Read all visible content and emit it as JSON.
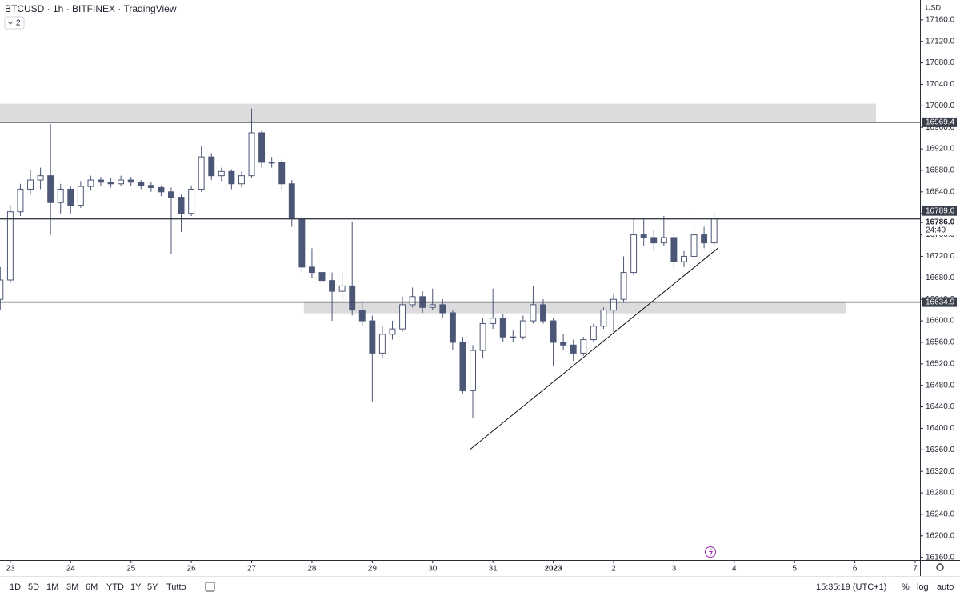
{
  "header": {
    "title": "BTCUSD · 1h · BITFINEX · TradingView",
    "indicator_count": "2",
    "currency": "USD"
  },
  "chart_data": {
    "type": "candlestick",
    "x": [
      -4,
      0,
      4,
      8,
      12,
      16,
      20,
      24,
      28,
      32,
      36,
      40,
      44,
      48,
      52,
      56,
      60,
      64,
      68,
      72,
      76,
      80,
      84,
      88,
      92,
      96,
      100,
      104,
      108,
      112,
      116,
      120,
      124,
      128,
      132,
      136,
      140,
      144,
      148,
      152,
      156,
      160,
      164,
      168,
      172,
      176,
      180,
      184,
      188,
      192,
      196,
      200,
      204,
      208,
      212,
      216,
      220,
      224,
      228,
      232,
      236,
      240,
      244,
      248,
      252,
      256,
      260,
      264,
      268,
      272,
      276,
      280
    ],
    "open": [
      16640,
      16676,
      16803,
      16845,
      16862,
      16870,
      16820,
      16845,
      16815,
      16850,
      16862,
      16858,
      16855,
      16862,
      16858,
      16852,
      16848,
      16840,
      16830,
      16800,
      16845,
      16905,
      16870,
      16878,
      16855,
      16870,
      16950,
      16895,
      16895,
      16855,
      16790,
      16700,
      16690,
      16675,
      16655,
      16665,
      16620,
      16600,
      16540,
      16575,
      16585,
      16630,
      16645,
      16625,
      16630,
      16615,
      16560,
      16470,
      16545,
      16595,
      16605,
      16570,
      16570,
      16600,
      16630,
      16600,
      16560,
      16555,
      16540,
      16565,
      16590,
      16620,
      16640,
      16690,
      16760,
      16755,
      16745,
      16755,
      16710,
      16720,
      16760,
      16745
    ],
    "high": [
      16700,
      16815,
      16855,
      16880,
      16885,
      16966,
      16855,
      16850,
      16860,
      16870,
      16868,
      16866,
      16870,
      16868,
      16862,
      16858,
      16852,
      16848,
      16835,
      16852,
      16925,
      16912,
      16885,
      16882,
      16878,
      16995,
      16955,
      16905,
      16900,
      16862,
      16795,
      16735,
      16700,
      16690,
      16690,
      16785,
      16635,
      16610,
      16590,
      16600,
      16645,
      16662,
      16655,
      16660,
      16640,
      16620,
      16570,
      16555,
      16605,
      16660,
      16612,
      16582,
      16610,
      16665,
      16640,
      16605,
      16575,
      16565,
      16570,
      16595,
      16625,
      16650,
      16720,
      16790,
      16790,
      16770,
      16795,
      16762,
      16730,
      16800,
      16775,
      16800
    ],
    "low": [
      16620,
      16670,
      16795,
      16835,
      16845,
      16760,
      16800,
      16800,
      16810,
      16842,
      16850,
      16848,
      16850,
      16850,
      16845,
      16840,
      16832,
      16724,
      16765,
      16795,
      16840,
      16862,
      16860,
      16845,
      16848,
      16865,
      16885,
      16885,
      16845,
      16775,
      16690,
      16680,
      16650,
      16600,
      16640,
      16610,
      16590,
      16450,
      16530,
      16565,
      16580,
      16625,
      16615,
      16620,
      16605,
      16545,
      16465,
      16420,
      16530,
      16585,
      16560,
      16560,
      16565,
      16595,
      16595,
      16515,
      16545,
      16525,
      16535,
      16560,
      16585,
      16580,
      16635,
      16685,
      16740,
      16730,
      16740,
      16695,
      16700,
      16715,
      16735,
      16740
    ],
    "close": [
      16676,
      16803,
      16845,
      16862,
      16870,
      16820,
      16845,
      16815,
      16850,
      16862,
      16858,
      16855,
      16862,
      16858,
      16852,
      16848,
      16840,
      16830,
      16800,
      16845,
      16905,
      16870,
      16878,
      16855,
      16870,
      16950,
      16895,
      16895,
      16855,
      16790,
      16700,
      16690,
      16675,
      16655,
      16665,
      16620,
      16600,
      16540,
      16575,
      16585,
      16630,
      16645,
      16625,
      16630,
      16615,
      16560,
      16470,
      16545,
      16595,
      16605,
      16570,
      16570,
      16600,
      16630,
      16600,
      16560,
      16555,
      16540,
      16565,
      16590,
      16620,
      16640,
      16690,
      16760,
      16755,
      16745,
      16755,
      16710,
      16720,
      16760,
      16745,
      16790
    ],
    "up_color": "#ffffff",
    "down_color": "#4c5676",
    "wick_color": "#4c5676",
    "xlim": [
      -4.1,
      361.9
    ],
    "xticks": [
      {
        "value": 0,
        "label": "23"
      },
      {
        "value": 24,
        "label": "24"
      },
      {
        "value": 48,
        "label": "25"
      },
      {
        "value": 72,
        "label": "26"
      },
      {
        "value": 96,
        "label": "27"
      },
      {
        "value": 120,
        "label": "28"
      },
      {
        "value": 144,
        "label": "29"
      },
      {
        "value": 168,
        "label": "30"
      },
      {
        "value": 192,
        "label": "31"
      },
      {
        "value": 216,
        "label": "2023"
      },
      {
        "value": 240,
        "label": "2"
      },
      {
        "value": 264,
        "label": "3"
      },
      {
        "value": 288,
        "label": "4"
      },
      {
        "value": 312,
        "label": "5"
      },
      {
        "value": 336,
        "label": "6"
      },
      {
        "value": 360,
        "label": "7"
      }
    ],
    "ylim": [
      16155,
      17197
    ],
    "yticks": [
      {
        "value": 16160,
        "label": "16160.0"
      },
      {
        "value": 16200,
        "label": "16200.0"
      },
      {
        "value": 16240,
        "label": "16240.0"
      },
      {
        "value": 16280,
        "label": "16280.0"
      },
      {
        "value": 16320,
        "label": "16320.0"
      },
      {
        "value": 16360,
        "label": "16360.0"
      },
      {
        "value": 16400,
        "label": "16400.0"
      },
      {
        "value": 16440,
        "label": "16440.0"
      },
      {
        "value": 16480,
        "label": "16480.0"
      },
      {
        "value": 16520,
        "label": "16520.0"
      },
      {
        "value": 16560,
        "label": "16560.0"
      },
      {
        "value": 16600,
        "label": "16600.0"
      },
      {
        "value": 16640,
        "label": "16640.0"
      },
      {
        "value": 16680,
        "label": "16680.0"
      },
      {
        "value": 16720,
        "label": "16720.0"
      },
      {
        "value": 16760,
        "label": "16760.0"
      },
      {
        "value": 16800,
        "label": "16800.0"
      },
      {
        "value": 16840,
        "label": "16840.0"
      },
      {
        "value": 16880,
        "label": "16880.0"
      },
      {
        "value": 16920,
        "label": "16920.0"
      },
      {
        "value": 16960,
        "label": "16960.0"
      },
      {
        "value": 17000,
        "label": "17000.0"
      },
      {
        "value": 17040,
        "label": "17040.0"
      },
      {
        "value": 17080,
        "label": "17080.0"
      },
      {
        "value": 17120,
        "label": "17120.0"
      },
      {
        "value": 17160,
        "label": "17160.0"
      }
    ],
    "zones": [
      {
        "x0": -4.1,
        "x1": 344.4,
        "top": 17004,
        "bottom": 16970
      },
      {
        "x0": 116.8,
        "x1": 332.6,
        "top": 16636,
        "bottom": 16614
      }
    ],
    "zone_color": "#dcdcdf",
    "hlines": [
      {
        "value": 16969.4,
        "label": "16969.4"
      },
      {
        "value": 16789.6,
        "label": "16789.6"
      },
      {
        "value": 16634.9,
        "label": "16634.9"
      }
    ],
    "hline_color": "#3a3f4c",
    "last_price": {
      "value": 16786.0,
      "label": "16786.0",
      "countdown": "24:40"
    },
    "trendline": {
      "x": [
        183,
        281.7
      ],
      "y": [
        16361,
        16736
      ]
    }
  },
  "toolbar": {
    "ranges": [
      "1D",
      "5D",
      "1M",
      "3M",
      "6M",
      "YTD",
      "1Y",
      "5Y",
      "Tutto"
    ],
    "clock": "15:35:19 (UTC+1)",
    "percent": "%",
    "log": "log",
    "auto": "auto"
  }
}
